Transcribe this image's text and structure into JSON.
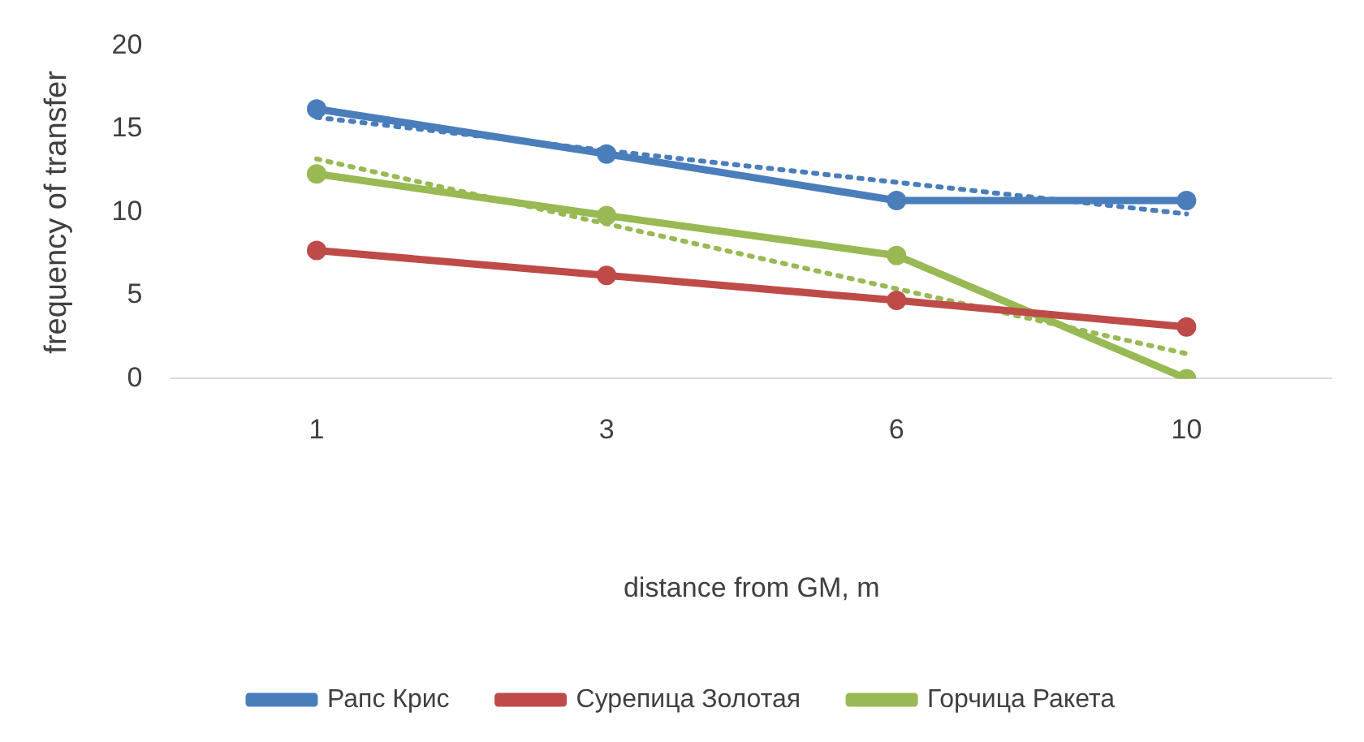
{
  "chart_data": {
    "type": "line",
    "xlabel": "distance from GM, m",
    "ylabel": "frequency of transfer",
    "categories": [
      "1",
      "3",
      "6",
      "10"
    ],
    "ylim": [
      0,
      20
    ],
    "yticks": [
      0,
      5,
      10,
      15,
      20
    ],
    "grid": false,
    "legend": "bottom",
    "marker": "circle",
    "line_style": "solid",
    "series": [
      {
        "name": "Рапс Крис",
        "color": "#4a7ebb",
        "values": [
          16.2,
          13.5,
          10.7,
          10.7
        ]
      },
      {
        "name": "Сурепица Золотая",
        "color": "#be4b48",
        "values": [
          7.7,
          6.2,
          4.7,
          3.1
        ]
      },
      {
        "name": "Горчица Ракета",
        "color": "#98b954",
        "values": [
          12.3,
          9.8,
          7.4,
          0
        ]
      },
      {
        "type": "line",
        "color": "#4a7ebb",
        "line_style": "dotted",
        "marker": "none",
        "values": [
          15.7,
          13.7,
          11.8,
          9.9
        ]
      },
      {
        "type": "line",
        "color": "#98b954",
        "line_style": "dotted",
        "marker": "none",
        "values": [
          13.2,
          9.3,
          5.4,
          1.5
        ]
      }
    ]
  }
}
